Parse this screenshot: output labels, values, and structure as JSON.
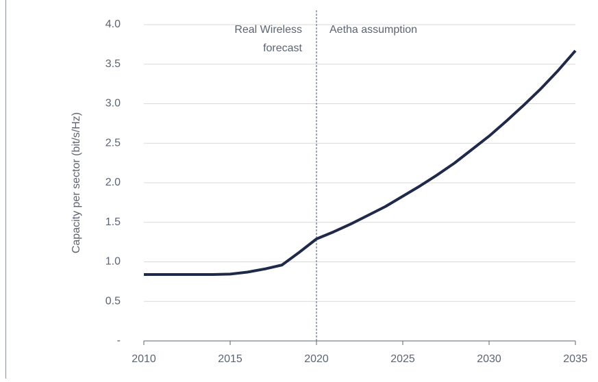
{
  "chart_data": {
    "type": "line",
    "y_label": "Capacity per sector (bit/s/Hz)",
    "x": [
      2010,
      2011,
      2012,
      2013,
      2014,
      2015,
      2016,
      2017,
      2018,
      2019,
      2020,
      2021,
      2022,
      2023,
      2024,
      2025,
      2026,
      2027,
      2028,
      2029,
      2030,
      2031,
      2032,
      2033,
      2034,
      2035
    ],
    "series": [
      {
        "name": "Capacity per sector",
        "color": "#1f2a4a",
        "values": [
          0.84,
          0.84,
          0.84,
          0.84,
          0.84,
          0.845,
          0.87,
          0.91,
          0.96,
          1.12,
          1.29,
          1.38,
          1.48,
          1.59,
          1.7,
          1.83,
          1.96,
          2.1,
          2.25,
          2.42,
          2.59,
          2.78,
          2.98,
          3.19,
          3.42,
          3.67
        ]
      }
    ],
    "xlim": [
      2010,
      2035
    ],
    "xticks": [
      2010,
      2015,
      2020,
      2025,
      2030,
      2035
    ],
    "ylim": [
      0,
      4
    ],
    "yticks": [
      {
        "value": 0,
        "label": "-"
      },
      0.5,
      {
        "value": 1,
        "label": "1.0"
      },
      1.5,
      {
        "value": 2,
        "label": "2.0"
      },
      2.5,
      {
        "value": 3,
        "label": "3.0"
      },
      3.5,
      {
        "value": 4,
        "label": "4.0"
      }
    ],
    "grid": true,
    "divider": {
      "x": 2020,
      "left_label": [
        "Real Wireless",
        "forecast"
      ],
      "right_label": "Aetha assumption"
    }
  }
}
